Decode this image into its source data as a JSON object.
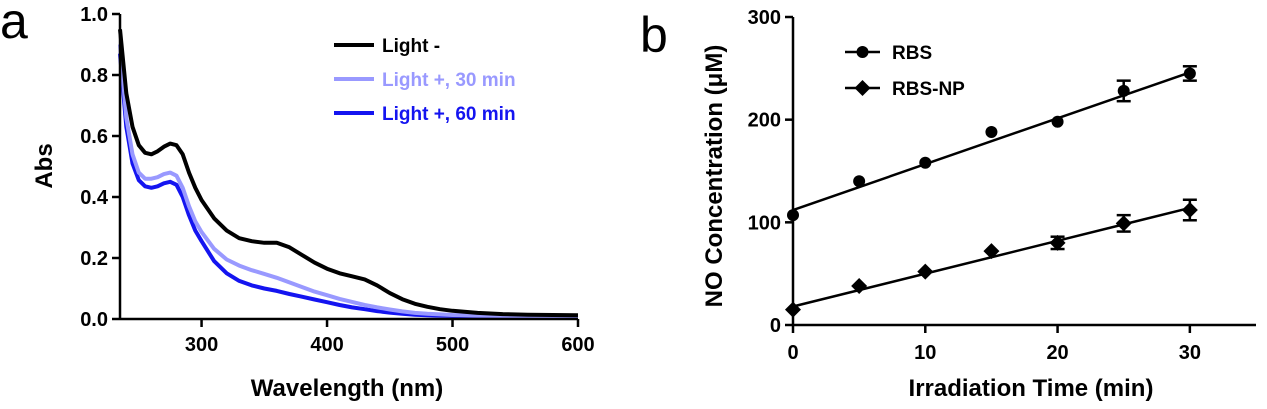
{
  "panels": {
    "a": {
      "letter": "a"
    },
    "b": {
      "letter": "b"
    }
  },
  "chart_data": [
    {
      "type": "line",
      "xlabel": "Wavelength (nm)",
      "ylabel": "Abs",
      "xlim": [
        235,
        600
      ],
      "ylim": [
        0.0,
        1.0
      ],
      "xticks": [
        300,
        400,
        500,
        600
      ],
      "yticks": [
        0.0,
        0.2,
        0.4,
        0.6,
        0.8,
        1.0
      ],
      "x_tick_labels": [
        "300",
        "400",
        "500",
        "600"
      ],
      "y_tick_labels": [
        "0.0",
        "0.2",
        "0.4",
        "0.6",
        "0.8",
        "1.0"
      ],
      "grid": false,
      "legend_position": "top-right",
      "series": [
        {
          "name": "Light -",
          "color": "#000000",
          "x": [
            235,
            240,
            245,
            250,
            255,
            260,
            265,
            270,
            275,
            280,
            285,
            290,
            295,
            300,
            310,
            320,
            330,
            340,
            350,
            360,
            370,
            380,
            390,
            400,
            410,
            420,
            430,
            440,
            450,
            460,
            470,
            480,
            490,
            500,
            520,
            540,
            560,
            580,
            600
          ],
          "y": [
            0.95,
            0.74,
            0.63,
            0.57,
            0.545,
            0.54,
            0.55,
            0.565,
            0.575,
            0.57,
            0.54,
            0.48,
            0.43,
            0.39,
            0.33,
            0.29,
            0.265,
            0.255,
            0.25,
            0.25,
            0.235,
            0.21,
            0.185,
            0.165,
            0.15,
            0.14,
            0.13,
            0.11,
            0.085,
            0.065,
            0.05,
            0.04,
            0.032,
            0.027,
            0.02,
            0.016,
            0.014,
            0.013,
            0.012
          ]
        },
        {
          "name": "Light +, 30 min",
          "color": "#9999ff",
          "x": [
            235,
            240,
            245,
            250,
            255,
            260,
            265,
            270,
            275,
            280,
            285,
            290,
            295,
            300,
            310,
            320,
            330,
            340,
            350,
            360,
            370,
            380,
            390,
            400,
            410,
            420,
            430,
            440,
            450,
            460,
            470,
            480,
            490,
            500,
            520,
            540,
            560,
            580,
            600
          ],
          "y": [
            0.9,
            0.66,
            0.54,
            0.48,
            0.46,
            0.46,
            0.465,
            0.475,
            0.48,
            0.47,
            0.43,
            0.37,
            0.32,
            0.285,
            0.23,
            0.195,
            0.175,
            0.16,
            0.148,
            0.135,
            0.12,
            0.105,
            0.09,
            0.078,
            0.066,
            0.056,
            0.046,
            0.038,
            0.031,
            0.025,
            0.02,
            0.017,
            0.015,
            0.013,
            0.011,
            0.01,
            0.01,
            0.009,
            0.009
          ]
        },
        {
          "name": "Light +, 60 min",
          "color": "#1414f0",
          "x": [
            235,
            240,
            245,
            250,
            255,
            260,
            265,
            270,
            275,
            280,
            285,
            290,
            295,
            300,
            310,
            320,
            330,
            340,
            350,
            360,
            370,
            380,
            390,
            400,
            410,
            420,
            430,
            440,
            450,
            460,
            470,
            480,
            490,
            500,
            520,
            540,
            560,
            580,
            600
          ],
          "y": [
            0.87,
            0.63,
            0.51,
            0.455,
            0.435,
            0.43,
            0.435,
            0.445,
            0.45,
            0.44,
            0.4,
            0.34,
            0.29,
            0.255,
            0.19,
            0.15,
            0.125,
            0.11,
            0.1,
            0.092,
            0.082,
            0.073,
            0.064,
            0.055,
            0.046,
            0.038,
            0.032,
            0.026,
            0.021,
            0.017,
            0.014,
            0.012,
            0.011,
            0.01,
            0.009,
            0.008,
            0.008,
            0.008,
            0.008
          ]
        }
      ]
    },
    {
      "type": "scatter",
      "xlabel": "Irradiation Time (min)",
      "ylabel": "NO Concentration (μM)",
      "xlim": [
        0,
        35
      ],
      "ylim": [
        0,
        300
      ],
      "xticks": [
        0,
        10,
        20,
        30
      ],
      "yticks": [
        0,
        100,
        200,
        300
      ],
      "x_tick_labels": [
        "0",
        "10",
        "20",
        "30"
      ],
      "y_tick_labels": [
        "0",
        "100",
        "200",
        "300"
      ],
      "grid": false,
      "legend_position": "top-left",
      "series": [
        {
          "name": "RBS",
          "marker": "circle",
          "x": [
            0,
            5,
            10,
            15,
            20,
            25,
            30
          ],
          "y": [
            107,
            140,
            158,
            188,
            198,
            228,
            245
          ],
          "error": [
            0,
            0,
            0,
            0,
            0,
            10,
            7
          ],
          "fit": {
            "x": [
              0,
              30
            ],
            "y": [
              112,
              246
            ]
          }
        },
        {
          "name": "RBS-NP",
          "marker": "diamond",
          "x": [
            0,
            5,
            10,
            15,
            20,
            25,
            30
          ],
          "y": [
            15,
            38,
            52,
            72,
            80,
            99,
            112
          ],
          "error": [
            0,
            0,
            0,
            0,
            6,
            8,
            10
          ],
          "fit": {
            "x": [
              0,
              30
            ],
            "y": [
              18,
              114
            ]
          }
        }
      ]
    }
  ]
}
